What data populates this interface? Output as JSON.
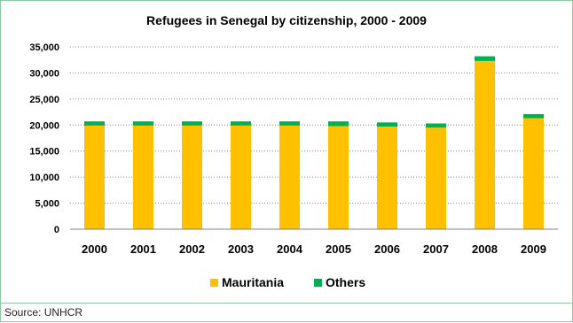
{
  "source": "Source: UNHCR",
  "chart_data": {
    "type": "bar",
    "stacked": true,
    "title": "Refugees in Senegal by citizenship, 2000 - 2009",
    "xlabel": "",
    "ylabel": "",
    "categories": [
      "2000",
      "2001",
      "2002",
      "2003",
      "2004",
      "2005",
      "2006",
      "2007",
      "2008",
      "2009"
    ],
    "series": [
      {
        "name": "Mauritania",
        "color": "#ffc000",
        "values": [
          19900,
          19900,
          19900,
          19900,
          19900,
          19800,
          19700,
          19500,
          32300,
          21300
        ]
      },
      {
        "name": "Others",
        "color": "#00b050",
        "values": [
          800,
          800,
          800,
          800,
          800,
          900,
          800,
          800,
          900,
          800
        ]
      }
    ],
    "ylim": [
      0,
      35000
    ],
    "yticks": [
      "0",
      "5,000",
      "10,000",
      "15,000",
      "20,000",
      "25,000",
      "30,000",
      "35,000"
    ],
    "grid": true,
    "legend_position": "bottom"
  }
}
